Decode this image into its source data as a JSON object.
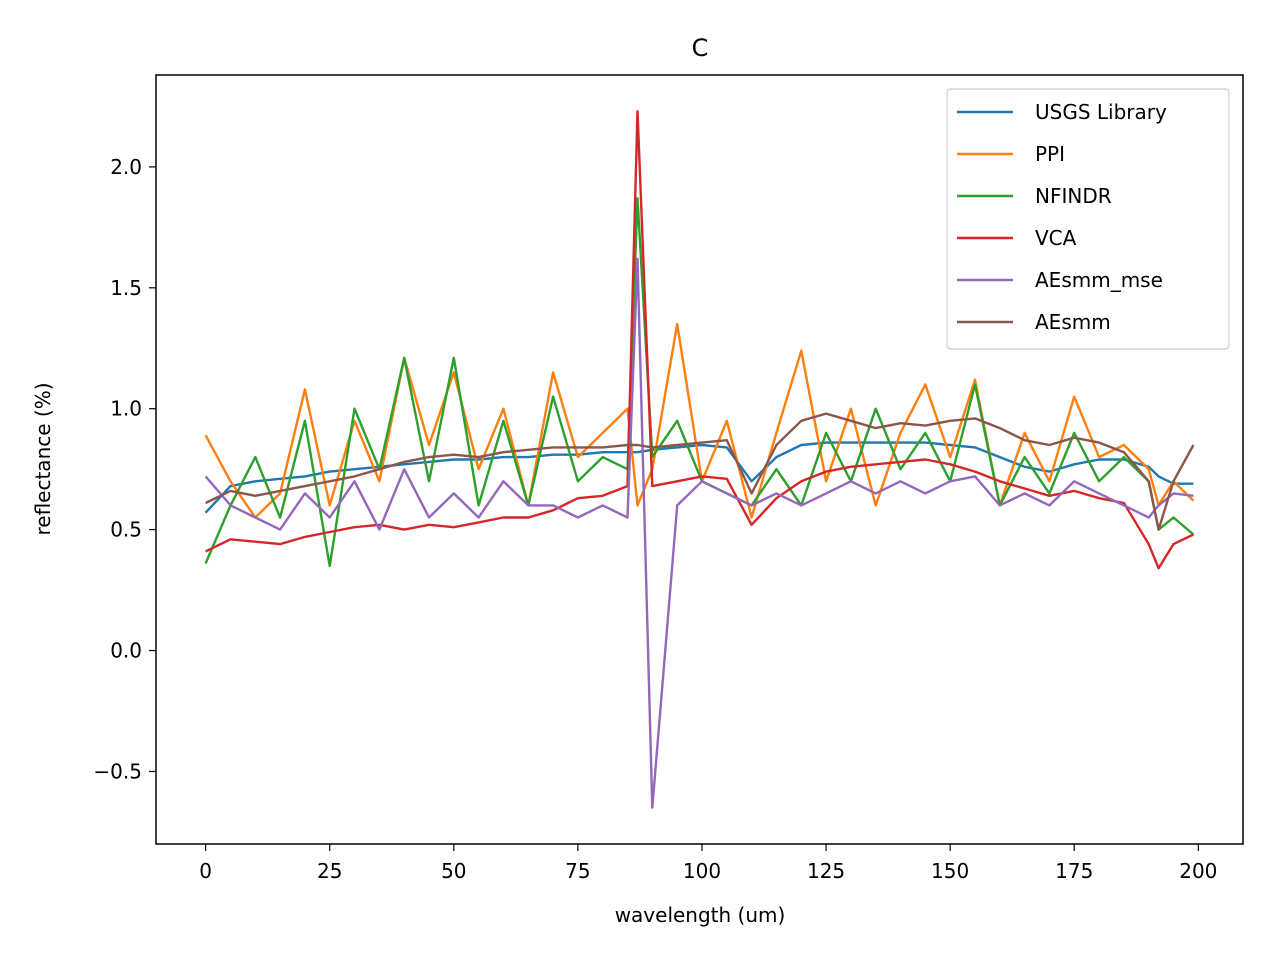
{
  "chart_data": {
    "type": "line",
    "title": "C",
    "xlabel": "wavelength (um)",
    "ylabel": "reflectance (%)",
    "xlim": [
      -10,
      209
    ],
    "ylim": [
      -0.8,
      2.38
    ],
    "xticks": [
      0,
      25,
      50,
      75,
      100,
      125,
      150,
      175,
      200
    ],
    "xtick_labels": [
      "0",
      "25",
      "50",
      "75",
      "100",
      "125",
      "150",
      "175",
      "200"
    ],
    "yticks": [
      -0.5,
      0.0,
      0.5,
      1.0,
      1.5,
      2.0
    ],
    "ytick_labels": [
      "−0.5",
      "0.0",
      "0.5",
      "1.0",
      "1.5",
      "2.0"
    ],
    "grid": false,
    "legend_position": "top-right",
    "x": [
      0,
      5,
      10,
      15,
      20,
      25,
      30,
      35,
      40,
      45,
      50,
      55,
      60,
      65,
      70,
      75,
      80,
      85,
      87,
      90,
      95,
      100,
      105,
      110,
      115,
      120,
      125,
      130,
      135,
      140,
      145,
      150,
      155,
      160,
      165,
      170,
      175,
      180,
      185,
      190,
      192,
      195,
      199
    ],
    "series": [
      {
        "name": "USGS Library",
        "color": "#1f77b4",
        "values": [
          0.57,
          0.68,
          0.7,
          0.71,
          0.72,
          0.74,
          0.75,
          0.76,
          0.77,
          0.78,
          0.79,
          0.79,
          0.8,
          0.8,
          0.81,
          0.81,
          0.82,
          0.82,
          0.82,
          0.83,
          0.84,
          0.85,
          0.84,
          0.7,
          0.8,
          0.85,
          0.86,
          0.86,
          0.86,
          0.86,
          0.86,
          0.85,
          0.84,
          0.8,
          0.76,
          0.74,
          0.77,
          0.79,
          0.79,
          0.76,
          0.72,
          0.69,
          0.69
        ]
      },
      {
        "name": "PPI",
        "color": "#ff7f0e",
        "values": [
          0.89,
          0.7,
          0.55,
          0.65,
          1.08,
          0.6,
          0.95,
          0.7,
          1.21,
          0.85,
          1.15,
          0.75,
          1.0,
          0.6,
          1.15,
          0.8,
          0.9,
          1.0,
          0.6,
          0.75,
          1.35,
          0.7,
          0.95,
          0.55,
          0.9,
          1.24,
          0.7,
          1.0,
          0.6,
          0.9,
          1.1,
          0.8,
          1.12,
          0.6,
          0.9,
          0.7,
          1.05,
          0.8,
          0.85,
          0.75,
          0.6,
          0.7,
          0.62
        ]
      },
      {
        "name": "NFINDR",
        "color": "#2ca02c",
        "values": [
          0.36,
          0.6,
          0.8,
          0.55,
          0.95,
          0.35,
          1.0,
          0.75,
          1.21,
          0.7,
          1.21,
          0.6,
          0.95,
          0.6,
          1.05,
          0.7,
          0.8,
          0.75,
          1.87,
          0.8,
          0.95,
          0.7,
          0.65,
          0.6,
          0.75,
          0.6,
          0.9,
          0.7,
          1.0,
          0.75,
          0.9,
          0.7,
          1.1,
          0.6,
          0.8,
          0.65,
          0.9,
          0.7,
          0.8,
          0.7,
          0.5,
          0.55,
          0.48
        ]
      },
      {
        "name": "VCA",
        "color": "#d62728",
        "values": [
          0.41,
          0.46,
          0.45,
          0.44,
          0.47,
          0.49,
          0.51,
          0.52,
          0.5,
          0.52,
          0.51,
          0.53,
          0.55,
          0.55,
          0.58,
          0.63,
          0.64,
          0.68,
          2.23,
          0.68,
          0.7,
          0.72,
          0.71,
          0.52,
          0.63,
          0.7,
          0.74,
          0.76,
          0.77,
          0.78,
          0.79,
          0.77,
          0.74,
          0.7,
          0.67,
          0.64,
          0.66,
          0.63,
          0.61,
          0.44,
          0.34,
          0.44,
          0.48
        ]
      },
      {
        "name": "AEsmm_mse",
        "color": "#9467bd",
        "values": [
          0.72,
          0.6,
          0.55,
          0.5,
          0.65,
          0.55,
          0.7,
          0.5,
          0.75,
          0.55,
          0.65,
          0.55,
          0.7,
          0.6,
          0.6,
          0.55,
          0.6,
          0.55,
          1.62,
          -0.65,
          0.6,
          0.7,
          0.65,
          0.6,
          0.65,
          0.6,
          0.65,
          0.7,
          0.65,
          0.7,
          0.65,
          0.7,
          0.72,
          0.6,
          0.65,
          0.6,
          0.7,
          0.65,
          0.6,
          0.55,
          0.6,
          0.65,
          0.64
        ]
      },
      {
        "name": "AEsmm",
        "color": "#8c564b",
        "values": [
          0.61,
          0.66,
          0.64,
          0.66,
          0.68,
          0.7,
          0.72,
          0.75,
          0.78,
          0.8,
          0.81,
          0.8,
          0.82,
          0.83,
          0.84,
          0.84,
          0.84,
          0.85,
          0.85,
          0.84,
          0.85,
          0.86,
          0.87,
          0.65,
          0.85,
          0.95,
          0.98,
          0.95,
          0.92,
          0.94,
          0.93,
          0.95,
          0.96,
          0.92,
          0.87,
          0.85,
          0.88,
          0.86,
          0.82,
          0.7,
          0.5,
          0.7,
          0.85
        ]
      }
    ]
  }
}
